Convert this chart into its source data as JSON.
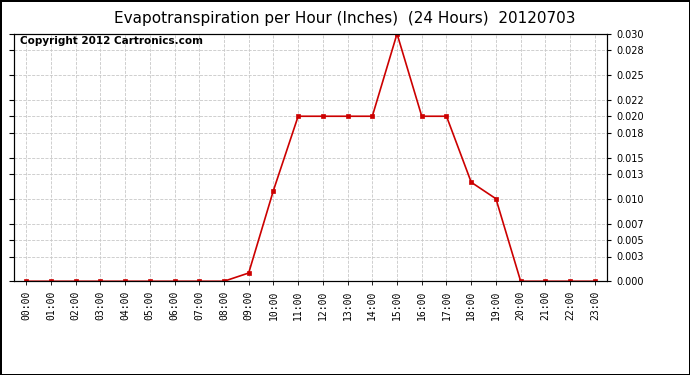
{
  "title": "Evapotranspiration per Hour (Inches)  (24 Hours)  20120703",
  "copyright": "Copyright 2012 Cartronics.com",
  "x_labels": [
    "00:00",
    "01:00",
    "02:00",
    "03:00",
    "04:00",
    "05:00",
    "06:00",
    "07:00",
    "08:00",
    "09:00",
    "10:00",
    "11:00",
    "12:00",
    "13:00",
    "14:00",
    "15:00",
    "16:00",
    "17:00",
    "18:00",
    "19:00",
    "20:00",
    "21:00",
    "22:00",
    "23:00"
  ],
  "y_values": [
    0.0,
    0.0,
    0.0,
    0.0,
    0.0,
    0.0,
    0.0,
    0.0,
    0.0,
    0.001,
    0.011,
    0.02,
    0.02,
    0.02,
    0.02,
    0.03,
    0.02,
    0.02,
    0.012,
    0.01,
    0.0,
    0.0,
    0.0,
    0.0
  ],
  "y_ticks": [
    0.0,
    0.003,
    0.005,
    0.007,
    0.01,
    0.013,
    0.015,
    0.018,
    0.02,
    0.022,
    0.025,
    0.028,
    0.03
  ],
  "ylim": [
    0.0,
    0.03
  ],
  "line_color": "#cc0000",
  "marker": "s",
  "marker_size": 3,
  "background_color": "#ffffff",
  "grid_color": "#c8c8c8",
  "title_fontsize": 11,
  "copyright_fontsize": 7.5,
  "tick_fontsize": 7
}
